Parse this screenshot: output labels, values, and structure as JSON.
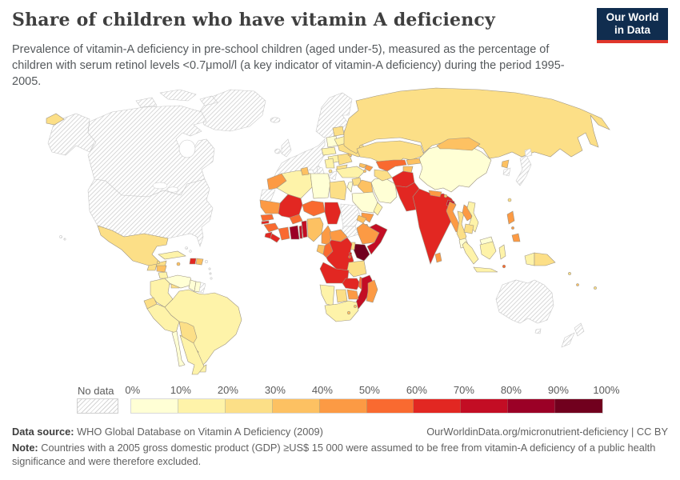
{
  "header": {
    "title": "Share of children who have vitamin A deficiency",
    "subtitle": "Prevalence of vitamin-A deficiency in pre-school children (aged under-5), measured as the percentage of children with serum retinol levels <0.7μmol/l (a key indicator of vitamin-A deficiency) during the period 1995-2005.",
    "logo": {
      "line1": "Our World",
      "line2": "in Data",
      "bg_color": "#102d4f",
      "accent_color": "#e0362b"
    }
  },
  "legend": {
    "no_data_label": "No data",
    "tick_labels": [
      "0%",
      "10%",
      "20%",
      "30%",
      "40%",
      "50%",
      "60%",
      "70%",
      "80%",
      "90%",
      "100%"
    ]
  },
  "footer": {
    "source_label": "Data source:",
    "source_text": " WHO Global Database on Vitamin A Deficiency (2009)",
    "link_text": "OurWorldinData.org/micronutrient-deficiency",
    "separator": " | ",
    "license_text": "CC BY",
    "note_label": "Note:",
    "note_text": " Countries with a 2005 gross domestic product (GDP) ≥US$ 15 000 were assumed to be free from vitamin-A deficiency of a public health significance and were therefore excluded."
  },
  "chart_data": {
    "type": "heatmap",
    "subtype": "world-choropleth",
    "title": "Share of children who have vitamin A deficiency",
    "unit": "%",
    "period": "1995-2005",
    "legend_position": "bottom",
    "bin_ranges": [
      "0-10%",
      "10-20%",
      "20-30%",
      "30-40%",
      "40-50%",
      "50-60%",
      "60-70%",
      "70-80%",
      "80-90%",
      "90-100%"
    ],
    "bin_colors": [
      "#FFFFD5",
      "#FEF3A9",
      "#FCDF87",
      "#FDC162",
      "#FC9A44",
      "#F96A30",
      "#E22722",
      "#C30D24",
      "#9B0026",
      "#71001E"
    ],
    "no_data": {
      "label": "No data",
      "pattern": "diagonal-hatch",
      "line_color": "#d4d4d4"
    },
    "border_color": "#9d9483",
    "no_data_border_color": "#c9c9c9",
    "country_bins": {
      "canada": "nd",
      "usa": "nd",
      "greenland": "nd",
      "arctic-islands": "nd",
      "iceland": "nd",
      "hawaii": "nd",
      "western-europe": "nd",
      "uk": "nd",
      "ireland": "nd",
      "scandinavia": "nd",
      "italy": "nd",
      "greece": "nd",
      "japan": "nd",
      "south-korea": "nd",
      "australia": "nd",
      "new-zealand": "nd",
      "sudan": "nd",
      "south-sudan": "nd",
      "western-sahara": "nd",
      "french-guiana": "nd",
      "puerto-rico": "nd",
      "bahamas": "nd",
      "lesser-antilles": "nd",
      "mexico": 2,
      "guatemala": 2,
      "belize": 2,
      "honduras": 3,
      "nicaragua": 1,
      "costa-rica": 0,
      "panama": 2,
      "cuba": 1,
      "jamaica": 3,
      "haiti": 6,
      "dominican-republic": 3,
      "colombia": 1,
      "venezuela": 0,
      "guyana": 0,
      "suriname": 0,
      "ecuador": 2,
      "peru": 1,
      "brazil": 1,
      "bolivia": 2,
      "paraguay": 1,
      "uruguay": 1,
      "chile": 0,
      "argentina": 1,
      "poland": 0,
      "czech-slovakia": 1,
      "hungary": 1,
      "balkans": 1,
      "albania-macedonia": 2,
      "romania": 2,
      "bulgaria": 2,
      "moldova": 3,
      "ukraine": 2,
      "belarus": 1,
      "baltics": 2,
      "russia": 2,
      "chukotka": 2,
      "morocco": 4,
      "algeria": 1,
      "tunisia": 3,
      "libya": 0,
      "egypt": 2,
      "mauritania": 4,
      "mali": 6,
      "niger": 5,
      "chad": 6,
      "senegal": 5,
      "gambia": 6,
      "guinea": 5,
      "sierra-leone": 6,
      "liberia": 6,
      "cote-divoire": 5,
      "burkina-faso": 5,
      "ghana": 8,
      "togo": 7,
      "benin": 7,
      "nigeria": 3,
      "cameroon": 4,
      "central-african-republic": 4,
      "eritrea": 3,
      "djibouti": 3,
      "ethiopia": 4,
      "somalia": 7,
      "kenya": 9,
      "uganda": 2,
      "gabon": 3,
      "congo": 5,
      "dr-congo": 6,
      "rwanda": 6,
      "burundi": 5,
      "tanzania": 2,
      "angola": 6,
      "zambia": 6,
      "malawi": 5,
      "mozambique": 7,
      "zimbabwe": 4,
      "botswana": 2,
      "namibia": 1,
      "south-africa": 1,
      "lesotho": 3,
      "swaziland": 3,
      "madagascar": 4,
      "turkey": 1,
      "syria": 2,
      "iraq": 3,
      "israel-jordan": 0,
      "saudi-arabia": 0,
      "yemen": 4,
      "oman": 1,
      "iran": 0,
      "georgia": 3,
      "armenia": 3,
      "azerbaijan": 4,
      "kazakhstan": 2,
      "uzbekistan": 5,
      "turkmenistan": 2,
      "kyrgyzstan": 3,
      "tajikistan": 3,
      "afghanistan": 6,
      "pakistan": 6,
      "india": 6,
      "nepal": 4,
      "bhutan": 3,
      "bangladesh": 7,
      "sri-lanka": 4,
      "china": 0,
      "mongolia": 3,
      "north-korea": 3,
      "taiwan": 2,
      "myanmar": 4,
      "thailand": 2,
      "laos": 4,
      "vietnam": 1,
      "cambodia": 2,
      "malaysia": 0,
      "indonesia": 1,
      "philippines": 4,
      "papua-new-guinea": 2,
      "timor-leste": 5,
      "fiji": 2,
      "vanuatu": 3,
      "solomon-islands": 2
    }
  }
}
